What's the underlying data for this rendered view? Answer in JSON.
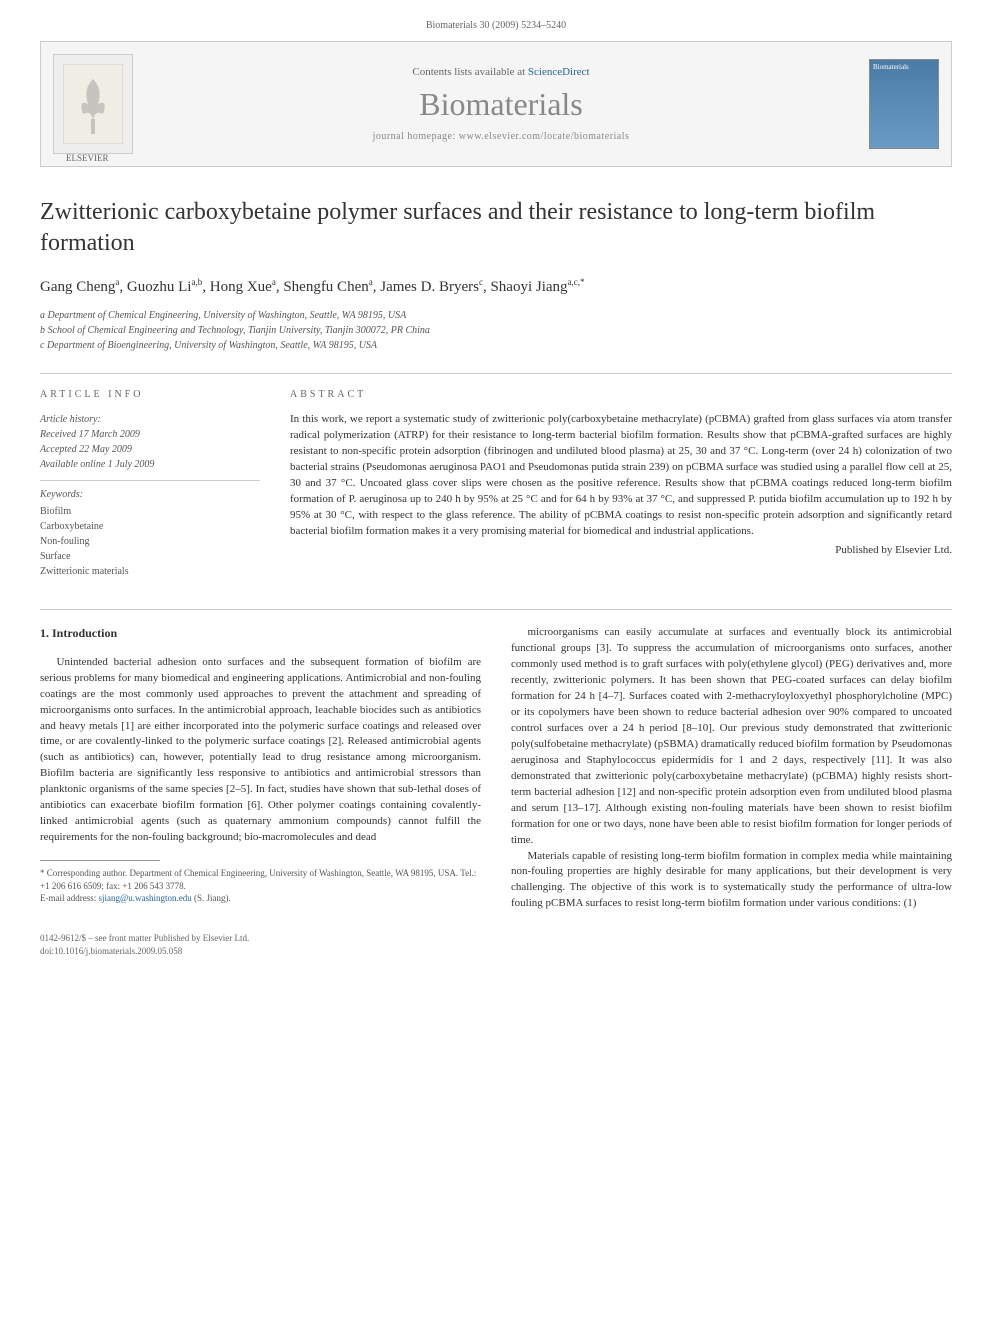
{
  "header": {
    "citation": "Biomaterials 30 (2009) 5234–5240"
  },
  "banner": {
    "contents_text": "Contents lists available at ",
    "contents_link": "ScienceDirect",
    "journal_name": "Biomaterials",
    "homepage_label": "journal homepage: ",
    "homepage_url": "www.elsevier.com/locate/biomaterials",
    "publisher": "ELSEVIER",
    "cover_label": "Biomaterials"
  },
  "article": {
    "title": "Zwitterionic carboxybetaine polymer surfaces and their resistance to long-term biofilm formation",
    "authors_html": "Gang Cheng<sup>a</sup>, Guozhu Li<sup>a,b</sup>, Hong Xue<sup>a</sup>, Shengfu Chen<sup>a</sup>, James D. Bryers<sup>c</sup>, Shaoyi Jiang<sup>a,c,*</sup>",
    "affiliations": [
      "a Department of Chemical Engineering, University of Washington, Seattle, WA 98195, USA",
      "b School of Chemical Engineering and Technology, Tianjin University, Tianjin 300072, PR China",
      "c Department of Bioengineering, University of Washington, Seattle, WA 98195, USA"
    ]
  },
  "info": {
    "heading": "ARTICLE INFO",
    "history_label": "Article history:",
    "received": "Received 17 March 2009",
    "accepted": "Accepted 22 May 2009",
    "online": "Available online 1 July 2009",
    "keywords_label": "Keywords:",
    "keywords": [
      "Biofilm",
      "Carboxybetaine",
      "Non-fouling",
      "Surface",
      "Zwitterionic materials"
    ]
  },
  "abstract": {
    "heading": "ABSTRACT",
    "text": "In this work, we report a systematic study of zwitterionic poly(carboxybetaine methacrylate) (pCBMA) grafted from glass surfaces via atom transfer radical polymerization (ATRP) for their resistance to long-term bacterial biofilm formation. Results show that pCBMA-grafted surfaces are highly resistant to non-specific protein adsorption (fibrinogen and undiluted blood plasma) at 25, 30 and 37 °C. Long-term (over 24 h) colonization of two bacterial strains (Pseudomonas aeruginosa PAO1 and Pseudomonas putida strain 239) on pCBMA surface was studied using a parallel flow cell at 25, 30 and 37 °C. Uncoated glass cover slips were chosen as the positive reference. Results show that pCBMA coatings reduced long-term biofilm formation of P. aeruginosa up to 240 h by 95% at 25 °C and for 64 h by 93% at 37 °C, and suppressed P. putida biofilm accumulation up to 192 h by 95% at 30 °C, with respect to the glass reference. The ability of pCBMA coatings to resist non-specific protein adsorption and significantly retard bacterial biofilm formation makes it a very promising material for biomedical and industrial applications.",
    "published_by": "Published by Elsevier Ltd."
  },
  "body": {
    "section_heading": "1. Introduction",
    "col1_p1": "Unintended bacterial adhesion onto surfaces and the subsequent formation of biofilm are serious problems for many biomedical and engineering applications. Antimicrobial and non-fouling coatings are the most commonly used approaches to prevent the attachment and spreading of microorganisms onto surfaces. In the antimicrobial approach, leachable biocides such as antibiotics and heavy metals [1] are either incorporated into the polymeric surface coatings and released over time, or are covalently-linked to the polymeric surface coatings [2]. Released antimicrobial agents (such as antibiotics) can, however, potentially lead to drug resistance among microorganism. Biofilm bacteria are significantly less responsive to antibiotics and antimicrobial stressors than planktonic organisms of the same species [2–5]. In fact, studies have shown that sub-lethal doses of antibiotics can exacerbate biofilm formation [6]. Other polymer coatings containing covalently-linked antimicrobial agents (such as quaternary ammonium compounds) cannot fulfill the requirements for the non-fouling background; bio-macromolecules and dead",
    "col2_p1": "microorganisms can easily accumulate at surfaces and eventually block its antimicrobial functional groups [3]. To suppress the accumulation of microorganisms onto surfaces, another commonly used method is to graft surfaces with poly(ethylene glycol) (PEG) derivatives and, more recently, zwitterionic polymers. It has been shown that PEG-coated surfaces can delay biofilm formation for 24 h [4–7]. Surfaces coated with 2-methacryloyloxyethyl phosphorylcholine (MPC) or its copolymers have been shown to reduce bacterial adhesion over 90% compared to uncoated control surfaces over a 24 h period [8–10]. Our previous study demonstrated that zwitterionic poly(sulfobetaine methacrylate) (pSBMA) dramatically reduced biofilm formation by Pseudomonas aeruginosa and Staphylococcus epidermidis for 1 and 2 days, respectively [11]. It was also demonstrated that zwitterionic poly(carboxybetaine methacrylate) (pCBMA) highly resists short-term bacterial adhesion [12] and non-specific protein adsorption even from undiluted blood plasma and serum [13–17]. Although existing non-fouling materials have been shown to resist biofilm formation for one or two days, none have been able to resist biofilm formation for longer periods of time.",
    "col2_p2": "Materials capable of resisting long-term biofilm formation in complex media while maintaining non-fouling properties are highly desirable for many applications, but their development is very challenging. The objective of this work is to systematically study the performance of ultra-low fouling pCBMA surfaces to resist long-term biofilm formation under various conditions: (1)"
  },
  "footnote": {
    "corr_text": "* Corresponding author. Department of Chemical Engineering, University of Washington, Seattle, WA 98195, USA. Tel.: +1 206 616 6509; fax: +1 206 543 3778.",
    "email_label": "E-mail address: ",
    "email": "sjiang@u.washington.edu",
    "email_suffix": " (S. Jiang)."
  },
  "footer": {
    "line1": "0142-9612/$ – see front matter Published by Elsevier Ltd.",
    "line2": "doi:10.1016/j.biomaterials.2009.05.058"
  }
}
